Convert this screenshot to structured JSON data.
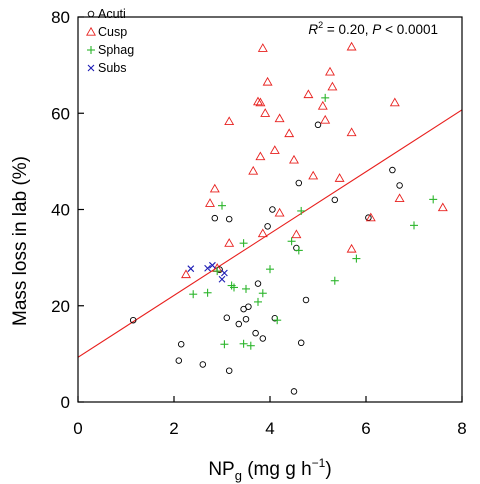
{
  "chart_data": {
    "type": "scatter",
    "xlabel": "NP",
    "xlabel_sub": "g",
    "xlabel_units": " (mg g h",
    "xlabel_sup": "−1",
    "xlabel_end": ")",
    "ylabel": "Mass loss in lab (%)",
    "xlim": [
      0,
      8
    ],
    "ylim": [
      0,
      80
    ],
    "x_ticks": [
      "0",
      "2",
      "4",
      "6",
      "8"
    ],
    "y_ticks": [
      "0",
      "20",
      "40",
      "60",
      "80"
    ],
    "annotation": {
      "r2": "R",
      "r2_sup": "2",
      "mid": " = 0.20, ",
      "p": "P",
      "p_end": " < 0.0001"
    },
    "legend": {
      "position": "top-left",
      "entries": [
        {
          "name": "Acuti",
          "marker": "circle",
          "color": "#000000"
        },
        {
          "name": "Cusp",
          "marker": "triangle",
          "color": "#e8201e"
        },
        {
          "name": "Sphag",
          "marker": "plus",
          "color": "#2bb52b"
        },
        {
          "name": "Subs",
          "marker": "x",
          "color": "#1d1db5"
        }
      ]
    },
    "regression": {
      "color": "#e8201e",
      "x": [
        0,
        8
      ],
      "y": [
        9.3,
        60.7
      ]
    },
    "series": [
      {
        "name": "Acuti",
        "marker": "circle",
        "color": "#000000",
        "points": [
          [
            1.15,
            17.0
          ],
          [
            2.1,
            8.6
          ],
          [
            2.15,
            12.0
          ],
          [
            2.6,
            7.8
          ],
          [
            2.85,
            38.2
          ],
          [
            2.95,
            27.5
          ],
          [
            3.15,
            38.0
          ],
          [
            3.1,
            17.5
          ],
          [
            3.15,
            6.5
          ],
          [
            3.35,
            16.2
          ],
          [
            3.45,
            19.3
          ],
          [
            3.5,
            17.2
          ],
          [
            3.55,
            19.8
          ],
          [
            3.7,
            14.3
          ],
          [
            3.75,
            24.6
          ],
          [
            3.85,
            13.2
          ],
          [
            3.95,
            36.5
          ],
          [
            4.05,
            40.0
          ],
          [
            4.1,
            17.4
          ],
          [
            4.5,
            2.2
          ],
          [
            4.55,
            32.0
          ],
          [
            4.6,
            45.5
          ],
          [
            4.65,
            12.3
          ],
          [
            4.75,
            21.2
          ],
          [
            5.0,
            57.6
          ],
          [
            5.35,
            42.0
          ],
          [
            6.05,
            38.3
          ],
          [
            6.55,
            48.2
          ],
          [
            6.7,
            45.0
          ]
        ]
      },
      {
        "name": "Cusp",
        "marker": "triangle",
        "color": "#e8201e",
        "points": [
          [
            2.25,
            26.5
          ],
          [
            2.75,
            41.3
          ],
          [
            2.85,
            44.3
          ],
          [
            2.9,
            27.8
          ],
          [
            3.15,
            33.0
          ],
          [
            3.15,
            58.3
          ],
          [
            3.65,
            48.0
          ],
          [
            3.75,
            62.4
          ],
          [
            3.8,
            51.0
          ],
          [
            3.8,
            62.2
          ],
          [
            3.85,
            73.5
          ],
          [
            3.85,
            35.0
          ],
          [
            3.9,
            60.0
          ],
          [
            3.95,
            66.5
          ],
          [
            4.1,
            52.3
          ],
          [
            4.2,
            58.9
          ],
          [
            4.2,
            39.3
          ],
          [
            4.4,
            55.8
          ],
          [
            4.5,
            50.3
          ],
          [
            4.55,
            34.8
          ],
          [
            4.8,
            63.9
          ],
          [
            4.9,
            47.0
          ],
          [
            5.1,
            61.5
          ],
          [
            5.15,
            58.6
          ],
          [
            5.25,
            68.6
          ],
          [
            5.3,
            65.5
          ],
          [
            5.45,
            46.5
          ],
          [
            5.7,
            73.8
          ],
          [
            5.7,
            56.0
          ],
          [
            5.7,
            31.8
          ],
          [
            6.1,
            38.3
          ],
          [
            6.6,
            62.2
          ],
          [
            6.7,
            42.3
          ],
          [
            7.6,
            40.4
          ]
        ]
      },
      {
        "name": "Sphag",
        "marker": "plus",
        "color": "#2bb52b",
        "points": [
          [
            2.4,
            22.4
          ],
          [
            2.7,
            22.7
          ],
          [
            2.9,
            27.2
          ],
          [
            3.0,
            40.8
          ],
          [
            3.05,
            12.0
          ],
          [
            3.2,
            24.2
          ],
          [
            3.25,
            23.8
          ],
          [
            3.45,
            33.0
          ],
          [
            3.45,
            12.1
          ],
          [
            3.5,
            23.5
          ],
          [
            3.6,
            11.7
          ],
          [
            3.75,
            20.8
          ],
          [
            3.85,
            22.6
          ],
          [
            4.0,
            27.6
          ],
          [
            4.15,
            17.0
          ],
          [
            4.45,
            33.4
          ],
          [
            4.6,
            31.5
          ],
          [
            4.65,
            39.7
          ],
          [
            5.15,
            63.2
          ],
          [
            5.35,
            25.2
          ],
          [
            5.8,
            29.8
          ],
          [
            7.0,
            36.7
          ],
          [
            7.4,
            42.1
          ]
        ]
      },
      {
        "name": "Subs",
        "marker": "x",
        "color": "#1d1db5",
        "points": [
          [
            2.35,
            27.7
          ],
          [
            2.7,
            27.8
          ],
          [
            2.8,
            28.4
          ],
          [
            3.0,
            25.5
          ],
          [
            3.05,
            26.8
          ]
        ]
      }
    ]
  }
}
